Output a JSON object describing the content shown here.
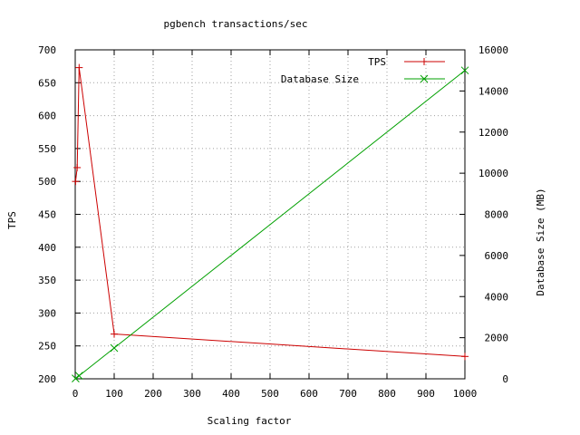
{
  "chart_data": {
    "type": "line",
    "title": "pgbench transactions/sec",
    "xlabel": "Scaling factor",
    "ylabel": "TPS",
    "y2label": "Database Size (MB)",
    "xlim": [
      0,
      1000
    ],
    "ylim": [
      200,
      700
    ],
    "y2lim": [
      0,
      16000
    ],
    "xticks": [
      0,
      100,
      200,
      300,
      400,
      500,
      600,
      700,
      800,
      900,
      1000
    ],
    "yticks": [
      200,
      250,
      300,
      350,
      400,
      450,
      500,
      550,
      600,
      650,
      700
    ],
    "y2ticks": [
      0,
      2000,
      4000,
      6000,
      8000,
      10000,
      12000,
      14000,
      16000
    ],
    "grid": true,
    "legend_position": "top-right",
    "series": [
      {
        "name": "TPS",
        "axis": "left",
        "color": "#cc0000",
        "marker": "plus",
        "x": [
          1,
          5,
          10,
          100,
          1000
        ],
        "y": [
          500,
          521,
          673,
          268,
          234
        ]
      },
      {
        "name": "Database Size",
        "axis": "right",
        "color": "#00a000",
        "marker": "cross",
        "x": [
          1,
          10,
          100,
          1000
        ],
        "y": [
          15,
          150,
          1500,
          15000
        ]
      }
    ]
  }
}
